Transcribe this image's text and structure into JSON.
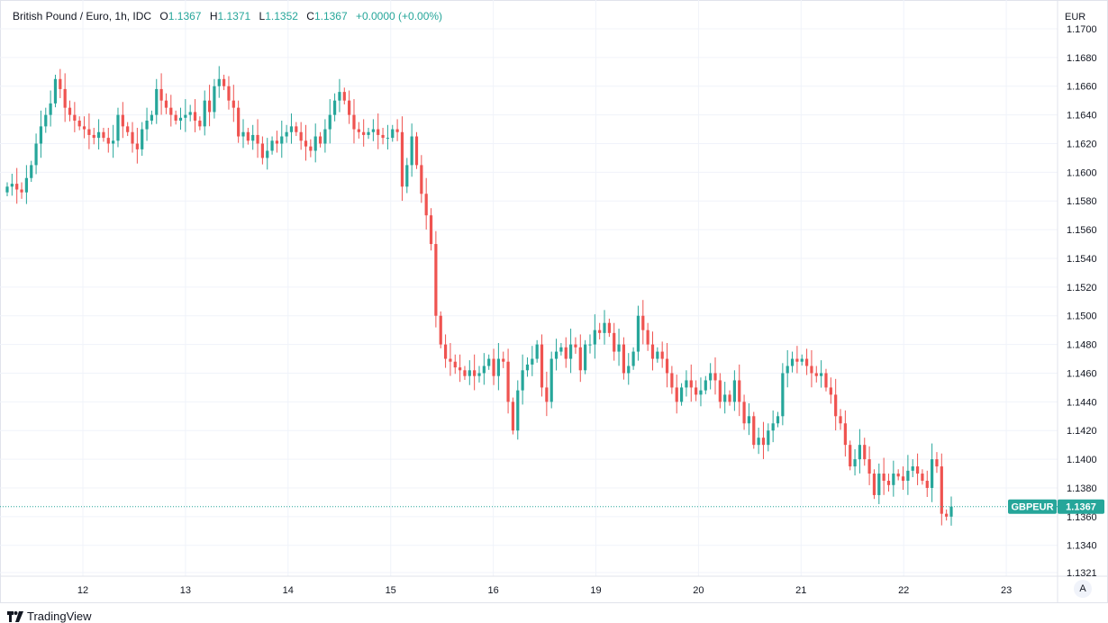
{
  "header": {
    "title": "British Pound / Euro, 1h, IDC",
    "o_label": "O",
    "o_value": "1.1367",
    "h_label": "H",
    "h_value": "1.1371",
    "l_label": "L",
    "l_value": "1.1352",
    "c_label": "C",
    "c_value": "1.1367",
    "change": "+0.0000 (+0.00%)"
  },
  "price_tag": {
    "symbol": "GBPEUR",
    "value": "1.1367"
  },
  "auto_button": "A",
  "brand": "TradingView",
  "colors": {
    "up": "#26a69a",
    "down": "#ef5350",
    "grid": "#f0f3fa",
    "text": "#131722"
  },
  "chart_data": {
    "type": "candlestick",
    "title": "British Pound / Euro, 1h, IDC",
    "currency_label": "EUR",
    "ylim": [
      1.1321,
      1.17
    ],
    "yticks": [
      "1.1700",
      "1.1680",
      "1.1660",
      "1.1640",
      "1.1620",
      "1.1600",
      "1.1580",
      "1.1560",
      "1.1540",
      "1.1520",
      "1.1500",
      "1.1480",
      "1.1460",
      "1.1440",
      "1.1420",
      "1.1400",
      "1.1380",
      "1.1360",
      "1.1340",
      "1.1321"
    ],
    "x_tick_labels": [
      "12",
      "13",
      "14",
      "15",
      "16",
      "19",
      "20",
      "21",
      "22",
      "23"
    ],
    "grid": true,
    "last_price": 1.1367,
    "close_series": [
      1.159,
      1.1592,
      1.1588,
      1.1586,
      1.1596,
      1.1605,
      1.162,
      1.1632,
      1.164,
      1.1648,
      1.1665,
      1.1658,
      1.1645,
      1.164,
      1.1636,
      1.1632,
      1.163,
      1.1626,
      1.1624,
      1.1628,
      1.1624,
      1.162,
      1.1622,
      1.164,
      1.1632,
      1.1628,
      1.162,
      1.1616,
      1.163,
      1.1636,
      1.164,
      1.1658,
      1.165,
      1.1645,
      1.164,
      1.1636,
      1.1638,
      1.164,
      1.1642,
      1.1636,
      1.1632,
      1.165,
      1.1642,
      1.166,
      1.1665,
      1.166,
      1.165,
      1.1645,
      1.1625,
      1.1628,
      1.1622,
      1.1626,
      1.162,
      1.161,
      1.1615,
      1.1622,
      1.162,
      1.1625,
      1.1628,
      1.1632,
      1.1628,
      1.1622,
      1.1618,
      1.1615,
      1.1625,
      1.162,
      1.163,
      1.164,
      1.165,
      1.1656,
      1.165,
      1.164,
      1.163,
      1.1628,
      1.1626,
      1.1628,
      1.163,
      1.1626,
      1.1624,
      1.1624,
      1.163,
      1.1628,
      1.159,
      1.1605,
      1.1625,
      1.1605,
      1.1585,
      1.157,
      1.155,
      1.15,
      1.148,
      1.147,
      1.1468,
      1.1464,
      1.1462,
      1.1458,
      1.1462,
      1.1458,
      1.146,
      1.1465,
      1.147,
      1.1458,
      1.147,
      1.1468,
      1.144,
      1.142,
      1.1448,
      1.1462,
      1.1466,
      1.147,
      1.148,
      1.145,
      1.144,
      1.147,
      1.1475,
      1.1478,
      1.147,
      1.148,
      1.1478,
      1.1462,
      1.148,
      1.148,
      1.149,
      1.1488,
      1.1495,
      1.1488,
      1.1475,
      1.148,
      1.146,
      1.1465,
      1.1475,
      1.15,
      1.149,
      1.148,
      1.147,
      1.1475,
      1.147,
      1.146,
      1.145,
      1.144,
      1.145,
      1.1455,
      1.145,
      1.1445,
      1.1448,
      1.1455,
      1.146,
      1.1455,
      1.144,
      1.1445,
      1.144,
      1.1455,
      1.144,
      1.1425,
      1.143,
      1.141,
      1.1415,
      1.141,
      1.142,
      1.1425,
      1.143,
      1.146,
      1.1465,
      1.147,
      1.1468,
      1.147,
      1.1465,
      1.146,
      1.1458,
      1.146,
      1.145,
      1.1445,
      1.143,
      1.1425,
      1.141,
      1.1395,
      1.14,
      1.141,
      1.14,
      1.139,
      1.1375,
      1.139,
      1.1385,
      1.1382,
      1.139,
      1.1388,
      1.1385,
      1.1392,
      1.1395,
      1.139,
      1.1385,
      1.138,
      1.14,
      1.1395,
      1.1362,
      1.136,
      1.1367
    ]
  }
}
